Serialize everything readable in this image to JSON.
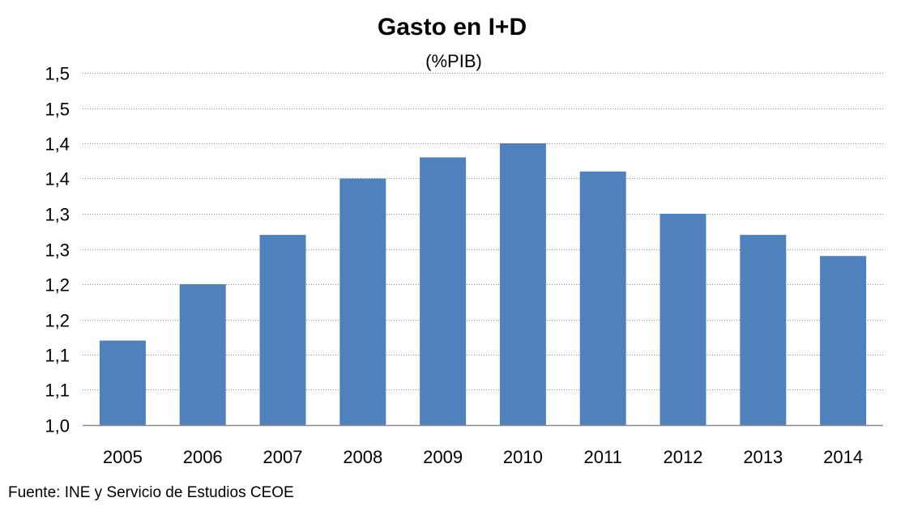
{
  "chart_data": {
    "type": "bar",
    "title": "Gasto en I+D",
    "subtitle": "(%PIB)",
    "xlabel": "",
    "ylabel": "",
    "categories": [
      "2005",
      "2006",
      "2007",
      "2008",
      "2009",
      "2010",
      "2011",
      "2012",
      "2013",
      "2014"
    ],
    "series": [
      {
        "values": [
          1.12,
          1.2,
          1.27,
          1.35,
          1.38,
          1.4,
          1.36,
          1.3,
          1.27,
          1.24
        ]
      }
    ],
    "ylim": [
      1.0,
      1.5
    ],
    "yticks": [
      1.0,
      1.05,
      1.1,
      1.15,
      1.2,
      1.25,
      1.3,
      1.35,
      1.4,
      1.45,
      1.5
    ],
    "ytick_labels": [
      "1,0",
      "1,1",
      "1,1",
      "1,2",
      "1,2",
      "1,3",
      "1,3",
      "1,4",
      "1,4",
      "1,5",
      "1,5"
    ],
    "grid": true,
    "legend": "none",
    "bar_color": "#4F81BD",
    "gridline_color": "#8A8A8A"
  },
  "footer": {
    "source": "Fuente: INE y Servicio de Estudios CEOE"
  }
}
